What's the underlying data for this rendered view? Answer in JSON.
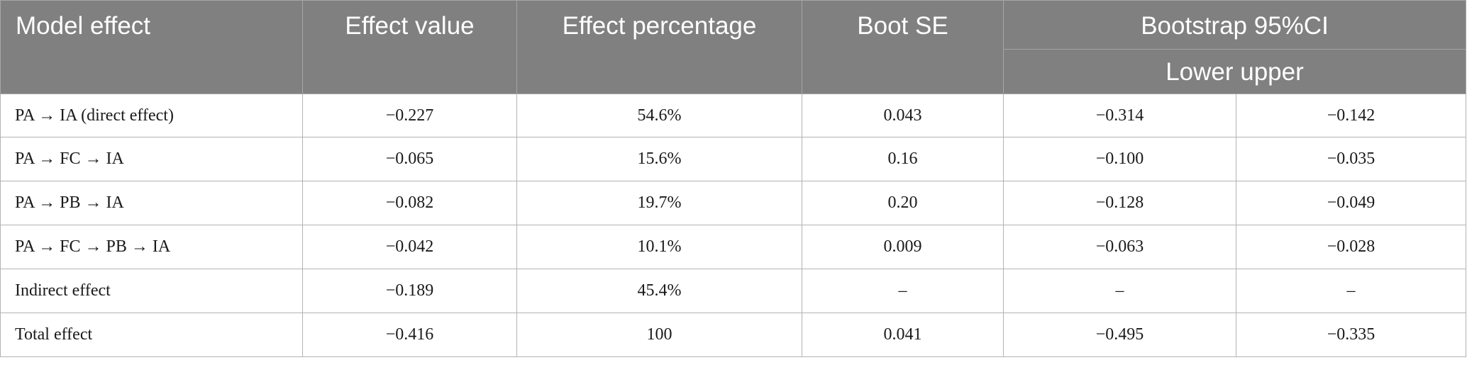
{
  "header": {
    "model_effect": "Model effect",
    "effect_value": "Effect value",
    "effect_percentage": "Effect percentage",
    "boot_se": "Boot SE",
    "bootstrap_ci": "Bootstrap 95%CI",
    "lower_upper": "Lower upper"
  },
  "rows": [
    {
      "model": "PA → IA (direct effect)",
      "value": "−0.227",
      "pct": "54.6%",
      "se": "0.043",
      "lower": "−0.314",
      "upper": "−0.142"
    },
    {
      "model": "PA → FC → IA",
      "value": "−0.065",
      "pct": "15.6%",
      "se": "0.16",
      "lower": "−0.100",
      "upper": "−0.035"
    },
    {
      "model": "PA → PB → IA",
      "value": "−0.082",
      "pct": "19.7%",
      "se": "0.20",
      "lower": "−0.128",
      "upper": "−0.049"
    },
    {
      "model": "PA → FC → PB → IA",
      "value": "−0.042",
      "pct": "10.1%",
      "se": "0.009",
      "lower": "−0.063",
      "upper": "−0.028"
    },
    {
      "model": "Indirect effect",
      "value": "−0.189",
      "pct": "45.4%",
      "se": "–",
      "lower": "–",
      "upper": "–"
    },
    {
      "model": "Total effect",
      "value": "−0.416",
      "pct": "100",
      "se": "0.041",
      "lower": "−0.495",
      "upper": "−0.335"
    }
  ]
}
